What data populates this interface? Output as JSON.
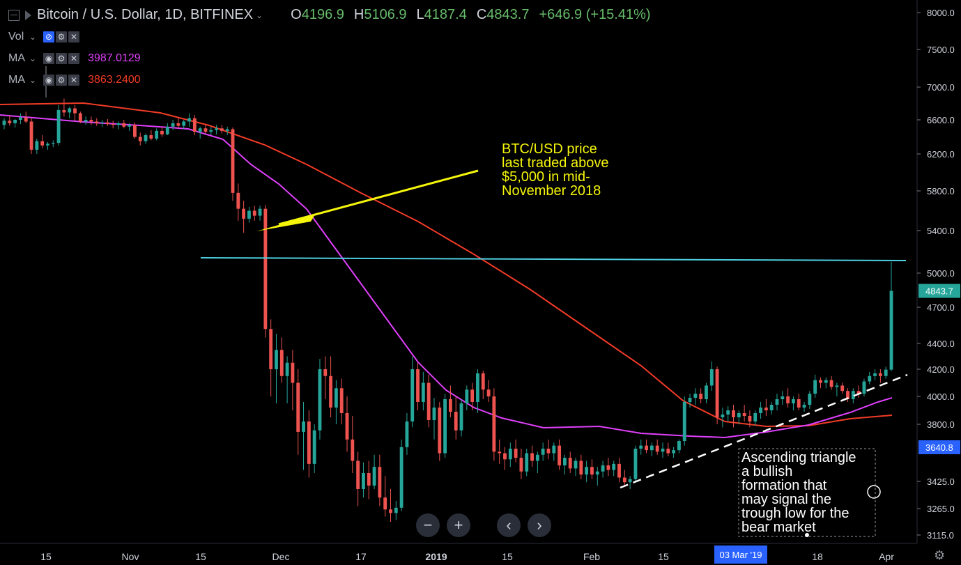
{
  "header": {
    "symbol": "Bitcoin / U.S. Dollar, 1D, BITFINEX",
    "open_k": "O",
    "open": "4196.9",
    "high_k": "H",
    "high": "5106.9",
    "low_k": "L",
    "low": "4187.4",
    "close_k": "C",
    "close": "4843.7",
    "change": "+646.9 (+15.41%)"
  },
  "indicators": [
    {
      "name": "Vol",
      "value": "",
      "color": "#d1d4dc"
    },
    {
      "name": "MA",
      "value": "3987.0129",
      "color": "#e040fb"
    },
    {
      "name": "MA",
      "value": "3863.2400",
      "color": "#f23b27"
    }
  ],
  "icons": {
    "eye": "eye-icon",
    "settings": "gear-icon",
    "remove": "close-icon"
  },
  "nav": {
    "zoom_out": "−",
    "zoom_in": "+",
    "prev": "‹",
    "next": "›"
  },
  "colors": {
    "background": "#000000",
    "up": "#26a69a",
    "down": "#ef5350",
    "ma_fast": "#e040fb",
    "ma_slow": "#f23b27",
    "resistance": "#4dd0e1",
    "annotation_arrow": "#f5f50a",
    "trendline": "#ffffff",
    "price_label": "#26a69a",
    "crosshair_label": "#2962ff"
  },
  "chart_data": {
    "type": "candlestick",
    "symbol": "BTC/USD",
    "timeframe": "1D",
    "exchange": "BITFINEX",
    "y_ticks": [
      "8000.0",
      "7500.0",
      "7000.0",
      "6600.0",
      "6200.0",
      "5800.0",
      "5400.0",
      "5000.0",
      "4700.0",
      "4400.0",
      "4200.0",
      "4000.0",
      "3800.0",
      "3425.0",
      "3265.0",
      "3115.0"
    ],
    "x_ticks": [
      "15",
      "Nov",
      "15",
      "Dec",
      "17",
      "2019",
      "15",
      "Feb",
      "15",
      "03 Mar '19",
      "18",
      "Apr"
    ],
    "last_price_label": "4843.7",
    "crosshair_price_label": "3640.8",
    "crosshair_date_label": "03 Mar '19",
    "ohlc_last": {
      "open": 4196.9,
      "high": 5106.9,
      "low": 4187.4,
      "close": 4843.7
    },
    "candles": [
      [
        6540,
        6620,
        6490,
        6590
      ],
      [
        6590,
        6650,
        6530,
        6560
      ],
      [
        6560,
        6610,
        6510,
        6600
      ],
      [
        6600,
        6680,
        6550,
        6630
      ],
      [
        6630,
        6700,
        6560,
        6580
      ],
      [
        6580,
        6620,
        6200,
        6250
      ],
      [
        6250,
        6380,
        6200,
        6350
      ],
      [
        6350,
        6420,
        6270,
        6300
      ],
      [
        6300,
        6340,
        6250,
        6320
      ],
      [
        6320,
        6360,
        6280,
        6330
      ],
      [
        6330,
        6780,
        6300,
        6720
      ],
      [
        6720,
        6860,
        6640,
        6690
      ],
      [
        6690,
        6760,
        6620,
        6740
      ],
      [
        6740,
        6780,
        6590,
        6680
      ],
      [
        6680,
        6700,
        6560,
        6580
      ],
      [
        6580,
        6640,
        6540,
        6600
      ],
      [
        6600,
        6640,
        6540,
        6580
      ],
      [
        6580,
        6620,
        6530,
        6560
      ],
      [
        6560,
        6600,
        6520,
        6570
      ],
      [
        6570,
        6610,
        6530,
        6550
      ],
      [
        6550,
        6590,
        6500,
        6540
      ],
      [
        6540,
        6580,
        6490,
        6560
      ],
      [
        6560,
        6600,
        6500,
        6520
      ],
      [
        6520,
        6560,
        6470,
        6540
      ],
      [
        6540,
        6570,
        6380,
        6400
      ],
      [
        6400,
        6450,
        6300,
        6350
      ],
      [
        6350,
        6440,
        6320,
        6420
      ],
      [
        6420,
        6480,
        6360,
        6380
      ],
      [
        6380,
        6500,
        6360,
        6470
      ],
      [
        6470,
        6520,
        6400,
        6430
      ],
      [
        6430,
        6560,
        6420,
        6520
      ],
      [
        6520,
        6600,
        6480,
        6560
      ],
      [
        6560,
        6620,
        6500,
        6530
      ],
      [
        6530,
        6600,
        6490,
        6580
      ],
      [
        6580,
        6680,
        6520,
        6620
      ],
      [
        6620,
        6660,
        6420,
        6460
      ],
      [
        6460,
        6520,
        6380,
        6500
      ],
      [
        6500,
        6540,
        6440,
        6460
      ],
      [
        6460,
        6520,
        6420,
        6480
      ],
      [
        6480,
        6540,
        6430,
        6500
      ],
      [
        6500,
        6540,
        6440,
        6470
      ],
      [
        6470,
        6520,
        6420,
        6490
      ],
      [
        6490,
        6510,
        5700,
        5780
      ],
      [
        5780,
        5880,
        5500,
        5620
      ],
      [
        5620,
        5700,
        5380,
        5520
      ],
      [
        5520,
        5640,
        5480,
        5600
      ],
      [
        5600,
        5650,
        5500,
        5550
      ],
      [
        5550,
        5650,
        5500,
        5620
      ],
      [
        5620,
        5660,
        4450,
        4520
      ],
      [
        4520,
        4600,
        4000,
        4200
      ],
      [
        4200,
        4480,
        3950,
        4350
      ],
      [
        4350,
        4450,
        4100,
        4150
      ],
      [
        4150,
        4300,
        3950,
        4250
      ],
      [
        4250,
        4350,
        3900,
        4100
      ],
      [
        4100,
        4200,
        3600,
        3750
      ],
      [
        3750,
        3960,
        3500,
        3820
      ],
      [
        3820,
        3900,
        3450,
        3540
      ],
      [
        3540,
        3800,
        3480,
        3760
      ],
      [
        3760,
        4280,
        3700,
        4200
      ],
      [
        4200,
        4300,
        3980,
        4150
      ],
      [
        4150,
        4300,
        3850,
        3920
      ],
      [
        3920,
        4120,
        3800,
        4060
      ],
      [
        4060,
        4130,
        3800,
        3880
      ],
      [
        3880,
        4000,
        3620,
        3700
      ],
      [
        3700,
        3860,
        3480,
        3560
      ],
      [
        3560,
        3620,
        3280,
        3380
      ],
      [
        3380,
        3550,
        3330,
        3480
      ],
      [
        3480,
        3560,
        3320,
        3400
      ],
      [
        3400,
        3600,
        3380,
        3520
      ],
      [
        3520,
        3600,
        3280,
        3330
      ],
      [
        3330,
        3460,
        3220,
        3260
      ],
      [
        3260,
        3380,
        3190,
        3240
      ],
      [
        3240,
        3310,
        3200,
        3270
      ],
      [
        3270,
        3700,
        3250,
        3650
      ],
      [
        3650,
        3880,
        3600,
        3820
      ],
      [
        3820,
        4300,
        3780,
        4200
      ],
      [
        4200,
        4250,
        3900,
        3960
      ],
      [
        3960,
        4180,
        3900,
        4100
      ],
      [
        4100,
        4160,
        3780,
        3830
      ],
      [
        3830,
        3990,
        3700,
        3920
      ],
      [
        3920,
        3960,
        3560,
        3610
      ],
      [
        3610,
        4020,
        3580,
        3980
      ],
      [
        3980,
        4080,
        3850,
        3890
      ],
      [
        3890,
        4000,
        3700,
        3760
      ],
      [
        3760,
        3980,
        3720,
        3950
      ],
      [
        3950,
        4080,
        3900,
        4050
      ],
      [
        4050,
        4100,
        3900,
        3960
      ],
      [
        3960,
        4200,
        3880,
        4170
      ],
      [
        4170,
        4190,
        3980,
        4050
      ],
      [
        4050,
        4120,
        3960,
        4000
      ],
      [
        4000,
        4060,
        3560,
        3620
      ],
      [
        3620,
        3700,
        3540,
        3610
      ],
      [
        3610,
        3650,
        3500,
        3570
      ],
      [
        3570,
        3680,
        3520,
        3640
      ],
      [
        3640,
        3700,
        3550,
        3580
      ],
      [
        3580,
        3640,
        3440,
        3490
      ],
      [
        3490,
        3640,
        3460,
        3610
      ],
      [
        3610,
        3660,
        3520,
        3560
      ],
      [
        3560,
        3620,
        3480,
        3600
      ],
      [
        3600,
        3680,
        3560,
        3640
      ],
      [
        3640,
        3700,
        3570,
        3610
      ],
      [
        3610,
        3680,
        3560,
        3660
      ],
      [
        3660,
        3700,
        3500,
        3530
      ],
      [
        3530,
        3600,
        3470,
        3580
      ],
      [
        3580,
        3620,
        3480,
        3510
      ],
      [
        3510,
        3580,
        3460,
        3560
      ],
      [
        3560,
        3600,
        3440,
        3470
      ],
      [
        3470,
        3560,
        3420,
        3520
      ],
      [
        3520,
        3570,
        3440,
        3470
      ],
      [
        3470,
        3520,
        3400,
        3490
      ],
      [
        3490,
        3560,
        3450,
        3530
      ],
      [
        3530,
        3580,
        3460,
        3500
      ],
      [
        3500,
        3560,
        3460,
        3540
      ],
      [
        3540,
        3580,
        3420,
        3450
      ],
      [
        3450,
        3500,
        3400,
        3420
      ],
      [
        3420,
        3460,
        3380,
        3440
      ],
      [
        3440,
        3660,
        3420,
        3640
      ],
      [
        3640,
        3700,
        3600,
        3660
      ],
      [
        3660,
        3700,
        3610,
        3630
      ],
      [
        3630,
        3680,
        3590,
        3660
      ],
      [
        3660,
        3700,
        3600,
        3620
      ],
      [
        3620,
        3680,
        3580,
        3640
      ],
      [
        3640,
        3680,
        3590,
        3610
      ],
      [
        3610,
        3650,
        3580,
        3630
      ],
      [
        3630,
        3700,
        3610,
        3690
      ],
      [
        3690,
        4000,
        3660,
        3960
      ],
      [
        3960,
        4020,
        3920,
        3990
      ],
      [
        3990,
        4060,
        3940,
        4020
      ],
      [
        4020,
        4060,
        3950,
        3980
      ],
      [
        3980,
        4100,
        3950,
        4080
      ],
      [
        4080,
        4260,
        4040,
        4200
      ],
      [
        4200,
        4220,
        3800,
        3850
      ],
      [
        3850,
        3920,
        3780,
        3870
      ],
      [
        3870,
        3930,
        3820,
        3900
      ],
      [
        3900,
        3940,
        3780,
        3850
      ],
      [
        3850,
        3900,
        3800,
        3880
      ],
      [
        3880,
        3940,
        3820,
        3860
      ],
      [
        3860,
        3900,
        3780,
        3820
      ],
      [
        3820,
        3900,
        3790,
        3880
      ],
      [
        3880,
        3960,
        3840,
        3920
      ],
      [
        3920,
        3980,
        3860,
        3900
      ],
      [
        3900,
        3960,
        3870,
        3940
      ],
      [
        3940,
        4020,
        3900,
        3980
      ],
      [
        3980,
        4040,
        3940,
        4000
      ],
      [
        4000,
        4060,
        3920,
        3950
      ],
      [
        3950,
        4000,
        3900,
        3980
      ],
      [
        3980,
        4020,
        3900,
        3920
      ],
      [
        3920,
        3960,
        3890,
        3940
      ],
      [
        3940,
        4040,
        3910,
        4020
      ],
      [
        4020,
        4160,
        3990,
        4120
      ],
      [
        4120,
        4140,
        4060,
        4100
      ],
      [
        4100,
        4140,
        4060,
        4120
      ],
      [
        4120,
        4150,
        4050,
        4070
      ],
      [
        4070,
        4100,
        4000,
        4080
      ],
      [
        4080,
        4100,
        4020,
        4040
      ],
      [
        4040,
        4060,
        3960,
        3980
      ],
      [
        3980,
        4060,
        3950,
        4040
      ],
      [
        4040,
        4080,
        3990,
        4020
      ],
      [
        4020,
        4130,
        4000,
        4110
      ],
      [
        4110,
        4180,
        4090,
        4150
      ],
      [
        4150,
        4200,
        4120,
        4170
      ],
      [
        4170,
        4200,
        4100,
        4150
      ],
      [
        4150,
        4220,
        4130,
        4197
      ],
      [
        4196.9,
        5106.9,
        4187.4,
        4843.7
      ]
    ],
    "ma_fast_end": 3987.0129,
    "ma_slow_end": 3863.24,
    "resistance_level": 5106.9,
    "annotations": [
      {
        "text": [
          "BTC/USD price",
          "last traded above",
          "$5,000 in mid-",
          "November 2018"
        ],
        "color": "#f5f50a"
      },
      {
        "text": [
          "Ascending triangle",
          "a bullish",
          "formation that",
          "may signal the",
          "trough low for the",
          "bear market"
        ],
        "color": "#ffffff"
      }
    ]
  }
}
